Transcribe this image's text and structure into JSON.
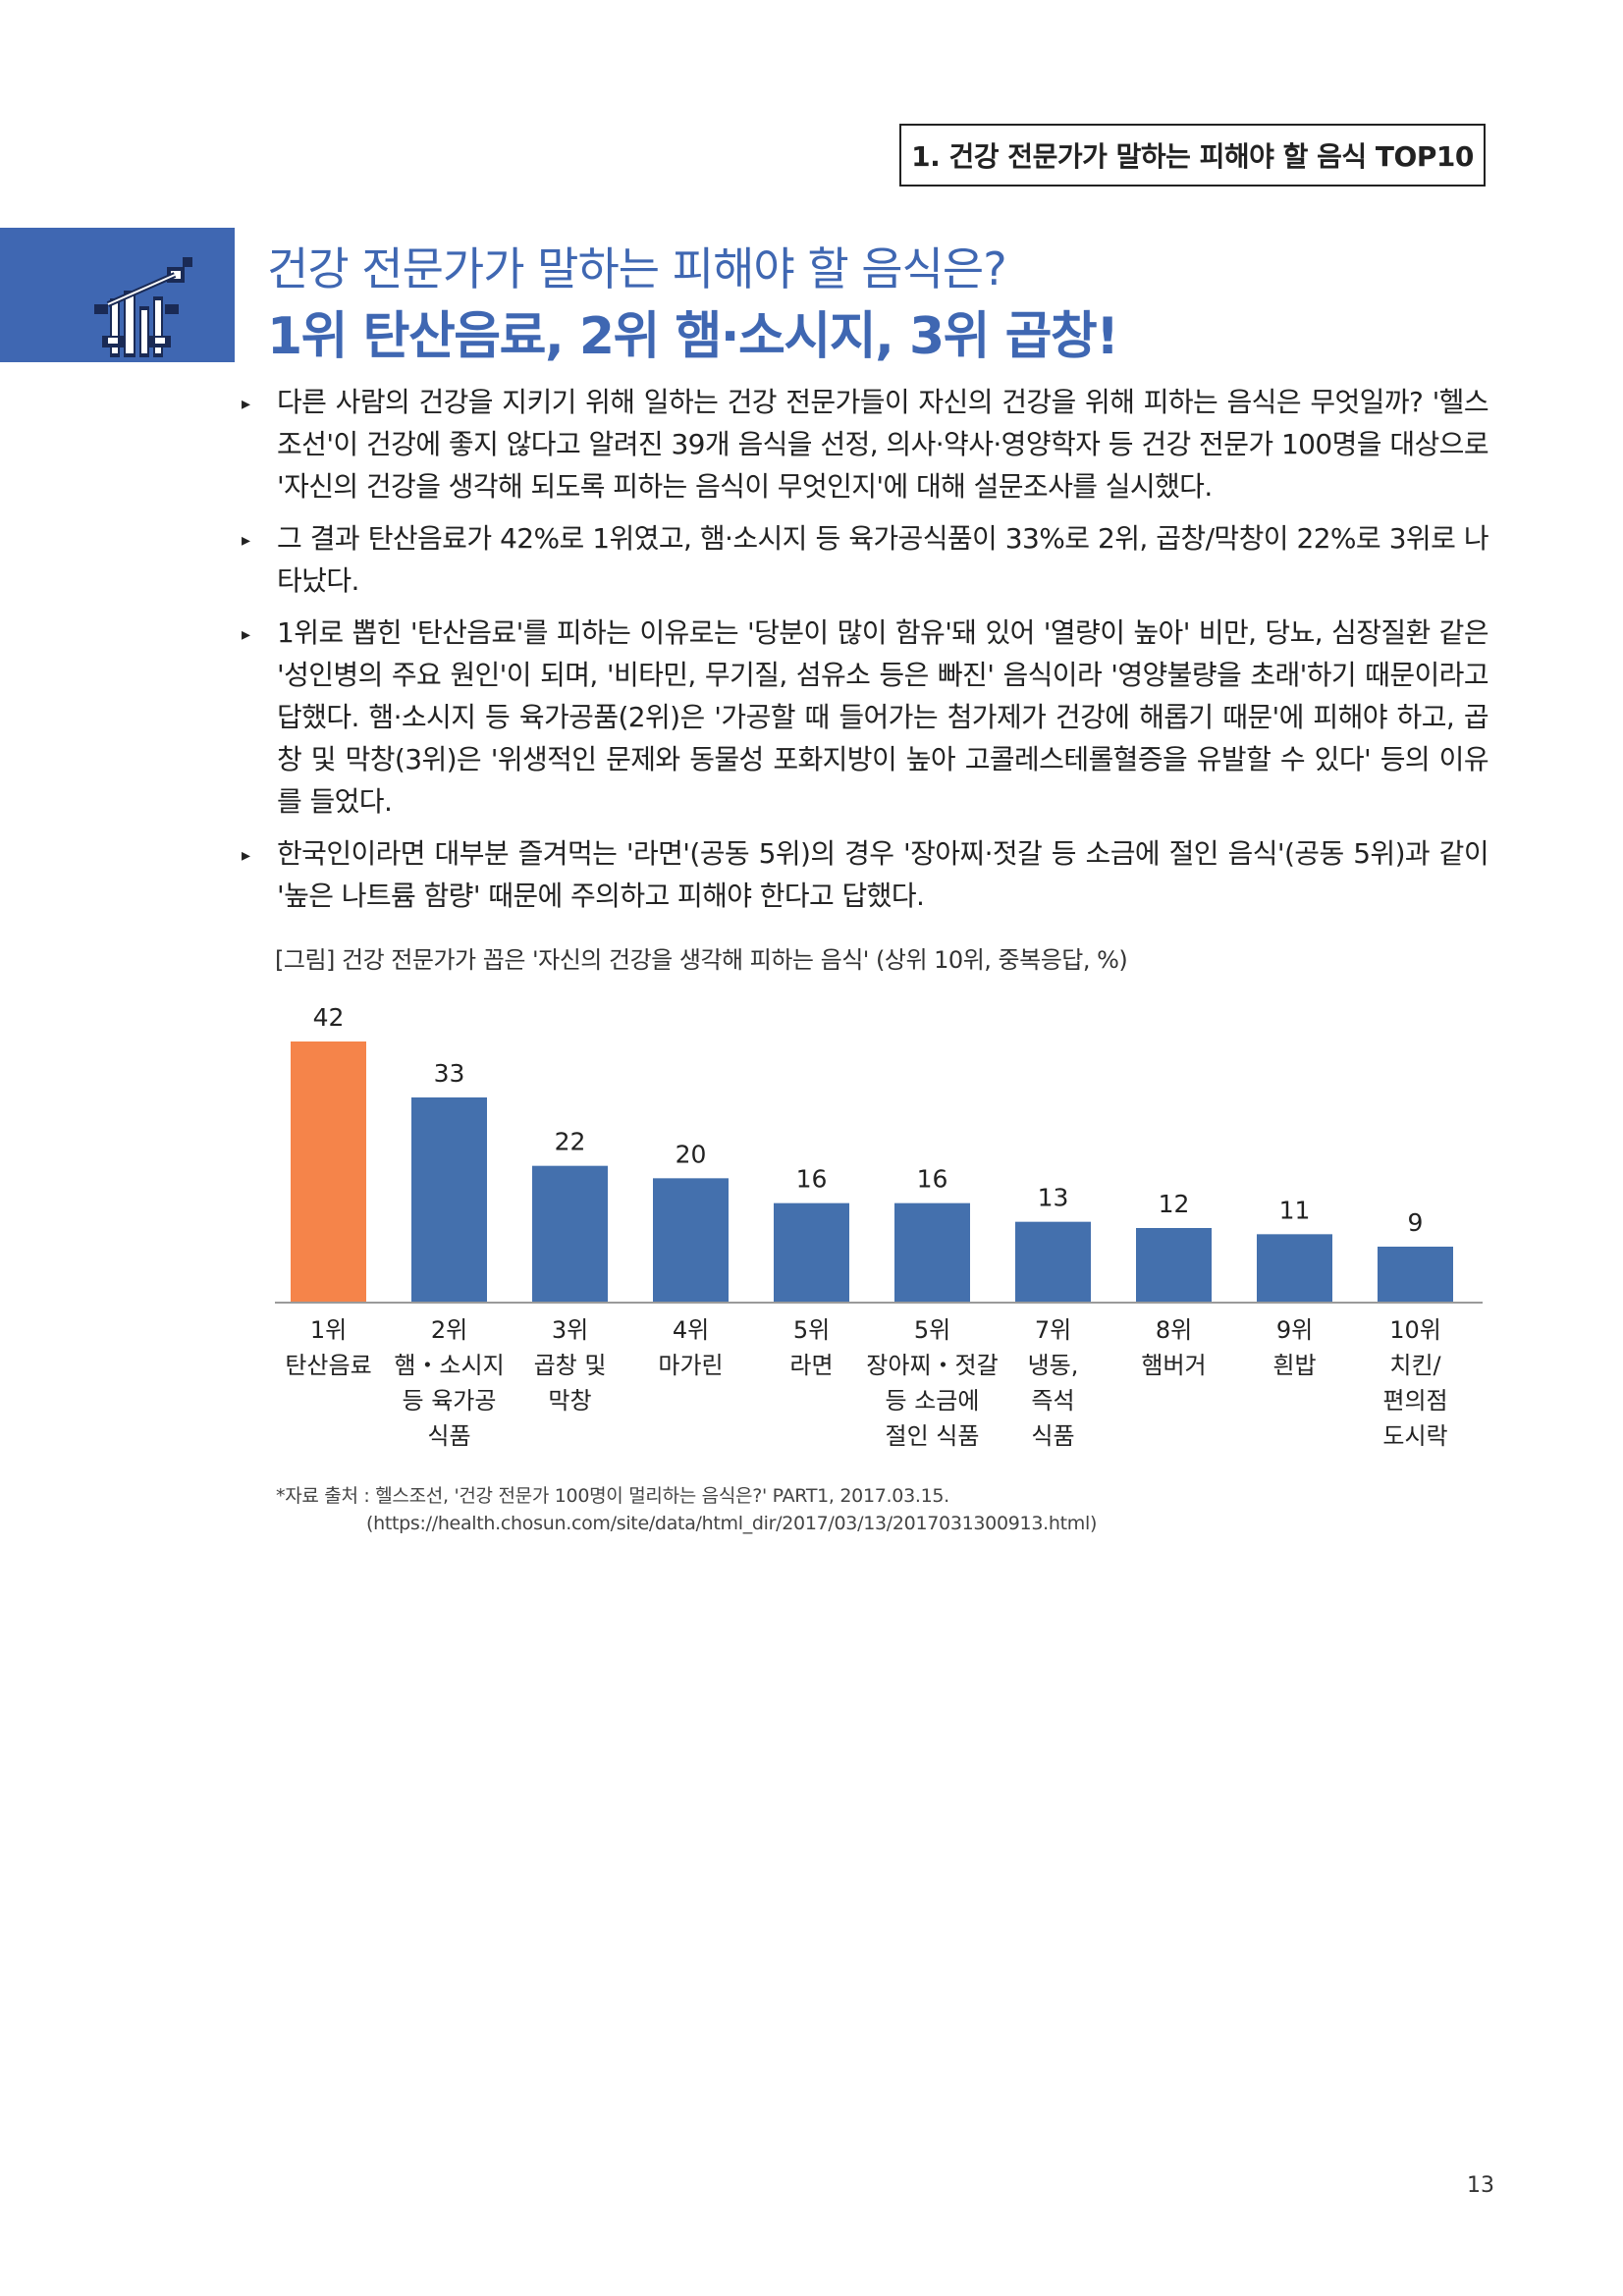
{
  "header": {
    "section_label": "1. 건강 전문가가 말하는 피해야 할 음식 TOP10"
  },
  "title": {
    "line1": "건강 전문가가 말하는 피해야 할 음식은?",
    "line2": "1위 탄산음료, 2위 햄·소시지, 3위 곱창!"
  },
  "paragraphs": [
    "다른 사람의 건강을 지키기 위해 일하는 건강 전문가들이 자신의 건강을 위해 피하는 음식은 무엇일까? '헬스조선'이 건강에 좋지 않다고 알려진 39개 음식을 선정, 의사·약사·영양학자 등 건강 전문가 100명을 대상으로 '자신의 건강을 생각해 되도록 피하는 음식이 무엇인지'에 대해 설문조사를 실시했다.",
    "그 결과 탄산음료가 42%로 1위였고, 햄·소시지 등 육가공식품이 33%로 2위, 곱창/막창이 22%로 3위로 나타났다.",
    "1위로 뽑힌 '탄산음료'를 피하는 이유로는 '당분이 많이 함유'돼 있어 '열량이 높아' 비만, 당뇨, 심장질환 같은 '성인병의 주요 원인'이 되며, '비타민, 무기질, 섬유소 등은 빠진' 음식이라 '영양불량을 초래'하기 때문이라고 답했다. 햄·소시지 등 육가공품(2위)은 '가공할 때 들어가는 첨가제가 건강에 해롭기 때문'에 피해야 하고, 곱창 및 막창(3위)은 '위생적인 문제와 동물성 포화지방이 높아 고콜레스테롤혈증을 유발할 수 있다' 등의 이유를 들었다.",
    "한국인이라면 대부분 즐겨먹는 '라면'(공동 5위)의 경우 '장아찌·젓갈 등 소금에 절인 음식'(공동 5위)과 같이 '높은 나트륨 함량' 때문에 주의하고 피해야 한다고 답했다."
  ],
  "figure": {
    "caption": "[그림] 건강 전문가가 꼽은 '자신의 건강을 생각해 피하는 음식' (상위 10위, 중복응답, %)"
  },
  "chart_data": {
    "type": "bar",
    "categories": [
      [
        "1위",
        "탄산음료"
      ],
      [
        "2위",
        "햄・소시지",
        "등 육가공",
        "식품"
      ],
      [
        "3위",
        "곱창 및",
        "막창"
      ],
      [
        "4위",
        "마가린"
      ],
      [
        "5위",
        "라면"
      ],
      [
        "5위",
        "장아찌・젓갈",
        "등 소금에",
        "절인 식품"
      ],
      [
        "7위",
        "냉동,",
        "즉석",
        "식품"
      ],
      [
        "8위",
        "햄버거"
      ],
      [
        "9위",
        "흰밥"
      ],
      [
        "10위",
        "치킨/",
        "편의점",
        "도시락"
      ]
    ],
    "values": [
      42,
      33,
      22,
      20,
      16,
      16,
      13,
      12,
      11,
      9
    ],
    "highlight_index": 0,
    "colors": {
      "highlight": "#f5844a",
      "default": "#4470ad",
      "axis": "#9a9a9a"
    },
    "ylim": [
      0,
      45
    ],
    "grid": false,
    "data_labels": true,
    "title": "",
    "xlabel": "",
    "ylabel": ""
  },
  "source": {
    "line1": "*자료 출처 : 헬스조선, '건강 전문가 100명이 멀리하는 음식은?' PART1, 2017.03.15.",
    "line2": "(https://health.chosun.com/site/data/html_dir/2017/03/13/2017031300913.html)"
  },
  "page_number": "13"
}
